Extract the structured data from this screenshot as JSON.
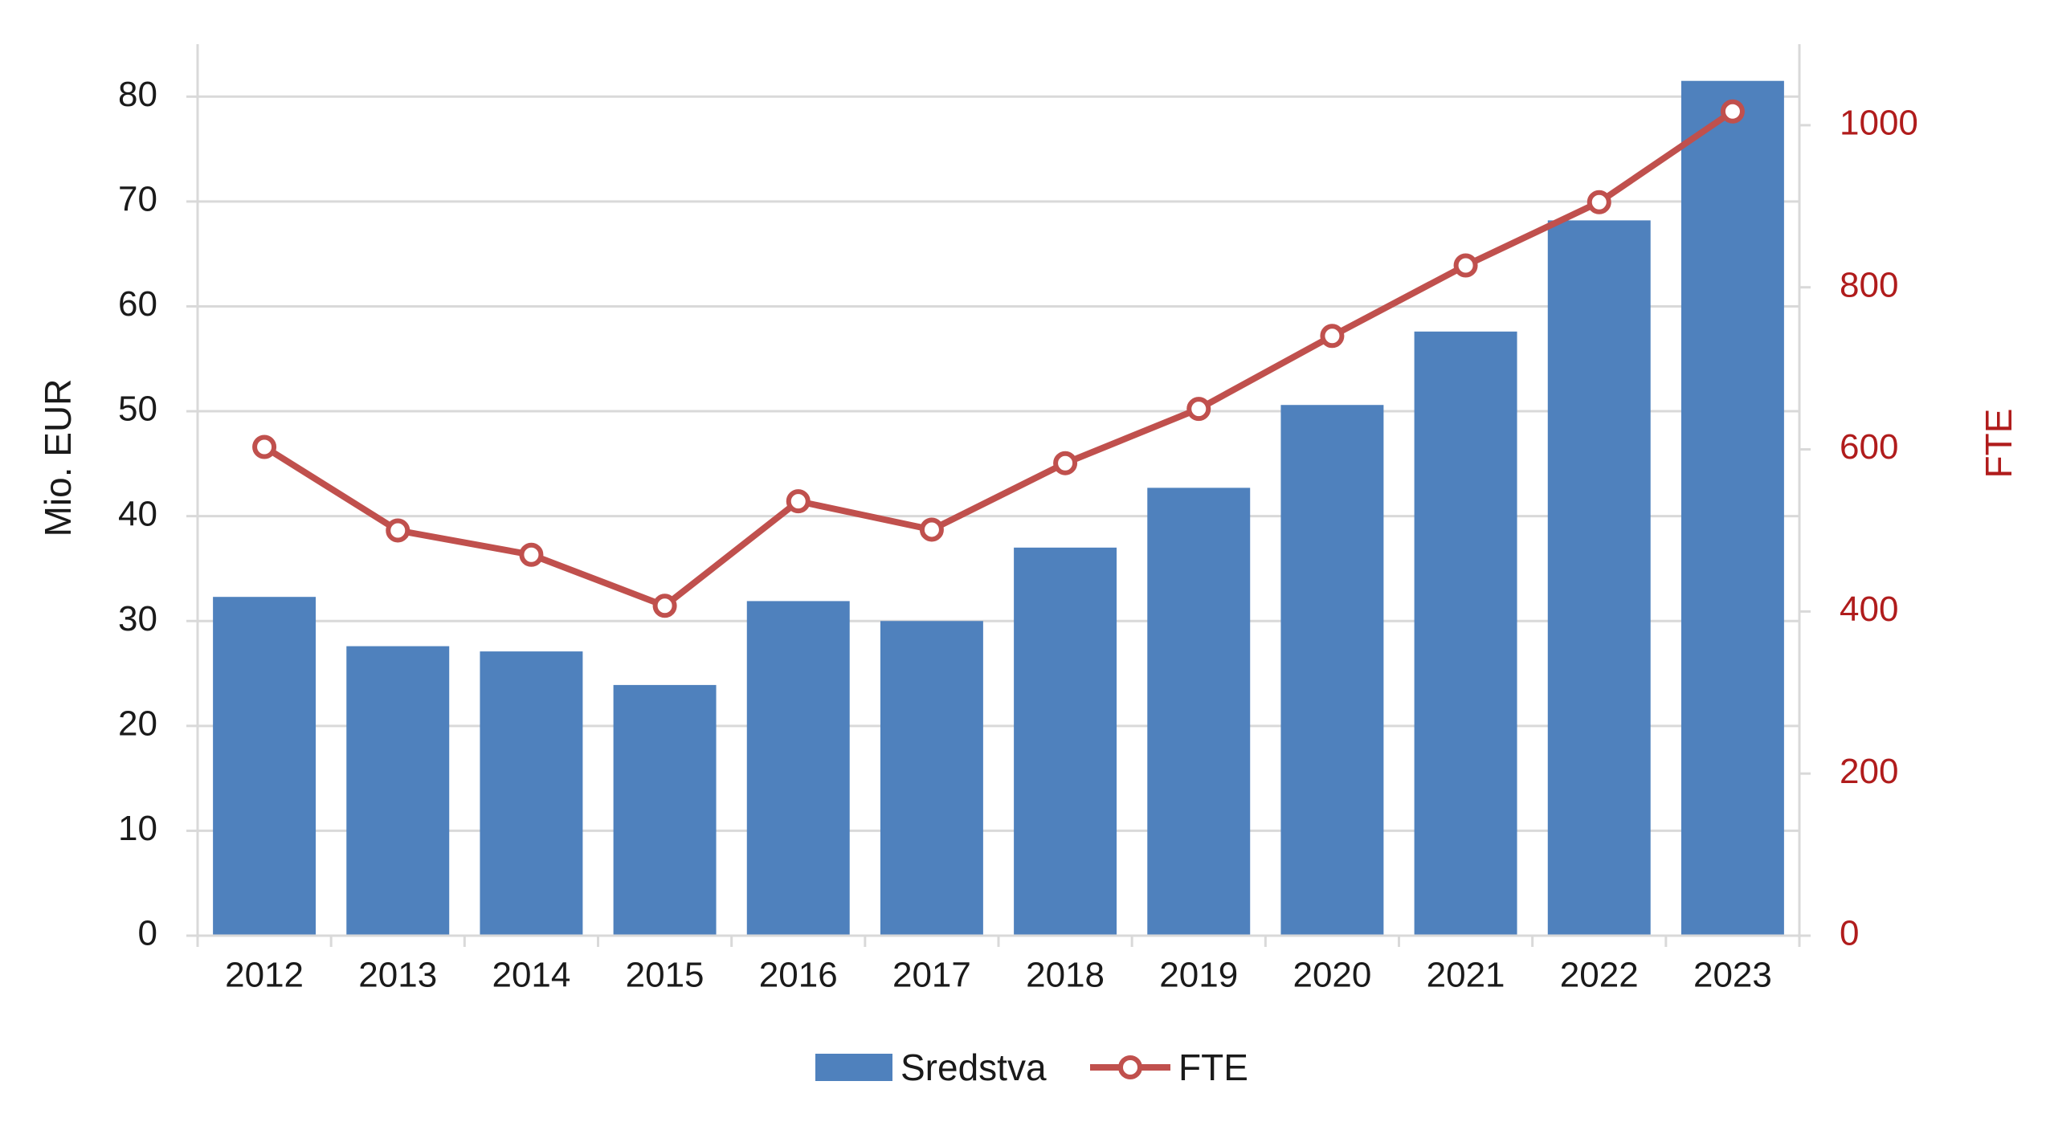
{
  "chart_data": {
    "type": "bar",
    "categories": [
      "2012",
      "2013",
      "2014",
      "2015",
      "2016",
      "2017",
      "2018",
      "2019",
      "2020",
      "2021",
      "2022",
      "2023"
    ],
    "series": [
      {
        "name": "Sredstva",
        "type": "bar",
        "axis": "left",
        "color": "#4f81bd",
        "values": [
          32.3,
          27.6,
          27.1,
          23.9,
          31.9,
          30.0,
          37.0,
          42.7,
          50.6,
          57.6,
          68.2,
          81.5
        ]
      },
      {
        "name": "FTE",
        "type": "line",
        "axis": "right",
        "color": "#c0504d",
        "values": [
          603,
          500,
          470,
          407,
          536,
          501,
          583,
          650,
          740,
          827,
          905,
          1017
        ]
      }
    ],
    "ylabel": "Mio. EUR",
    "y2label": "FTE",
    "ylim": [
      0,
      85
    ],
    "y2lim": [
      0,
      1100
    ],
    "yticks": [
      "0",
      "10",
      "20",
      "30",
      "40",
      "50",
      "60",
      "70",
      "80"
    ],
    "y2ticks": [
      "0",
      "200",
      "400",
      "600",
      "800",
      "1000"
    ],
    "grid": true,
    "legend": "bottom-center"
  }
}
